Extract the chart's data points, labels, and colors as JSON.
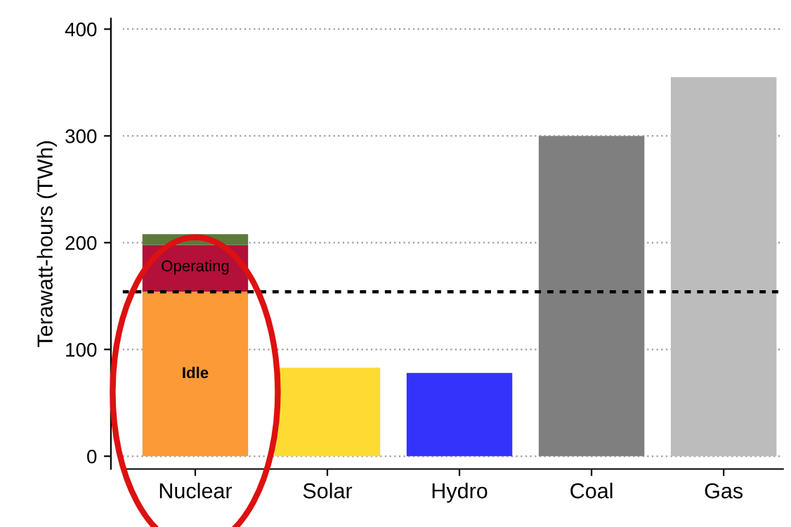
{
  "chart_data": {
    "type": "bar",
    "ylabel": "Terawatt-hours (TWh)",
    "categories": [
      "Nuclear",
      "Solar",
      "Hydro",
      "Coal",
      "Gas"
    ],
    "stacked": true,
    "series": [
      {
        "colors": [
          "#fb9a36",
          "#fedb33",
          "#3333fb",
          "#7f7f7f",
          "#bcbcbc"
        ],
        "values": [
          154,
          83,
          78,
          300,
          355
        ]
      },
      {
        "color": "#b3103a",
        "values": [
          44,
          null,
          null,
          null,
          null
        ]
      },
      {
        "color": "#5b7a3a",
        "values": [
          10,
          null,
          null,
          null,
          null
        ]
      }
    ],
    "annotations": [
      "Idle",
      "Operating"
    ],
    "ref_lines": [
      {
        "axis": "y",
        "value": 154,
        "color": "#000000",
        "line_style": "dotted"
      }
    ],
    "ylim": [
      -12,
      410
    ],
    "yticks": [
      0,
      100,
      200,
      300,
      400
    ],
    "grid": "y"
  }
}
